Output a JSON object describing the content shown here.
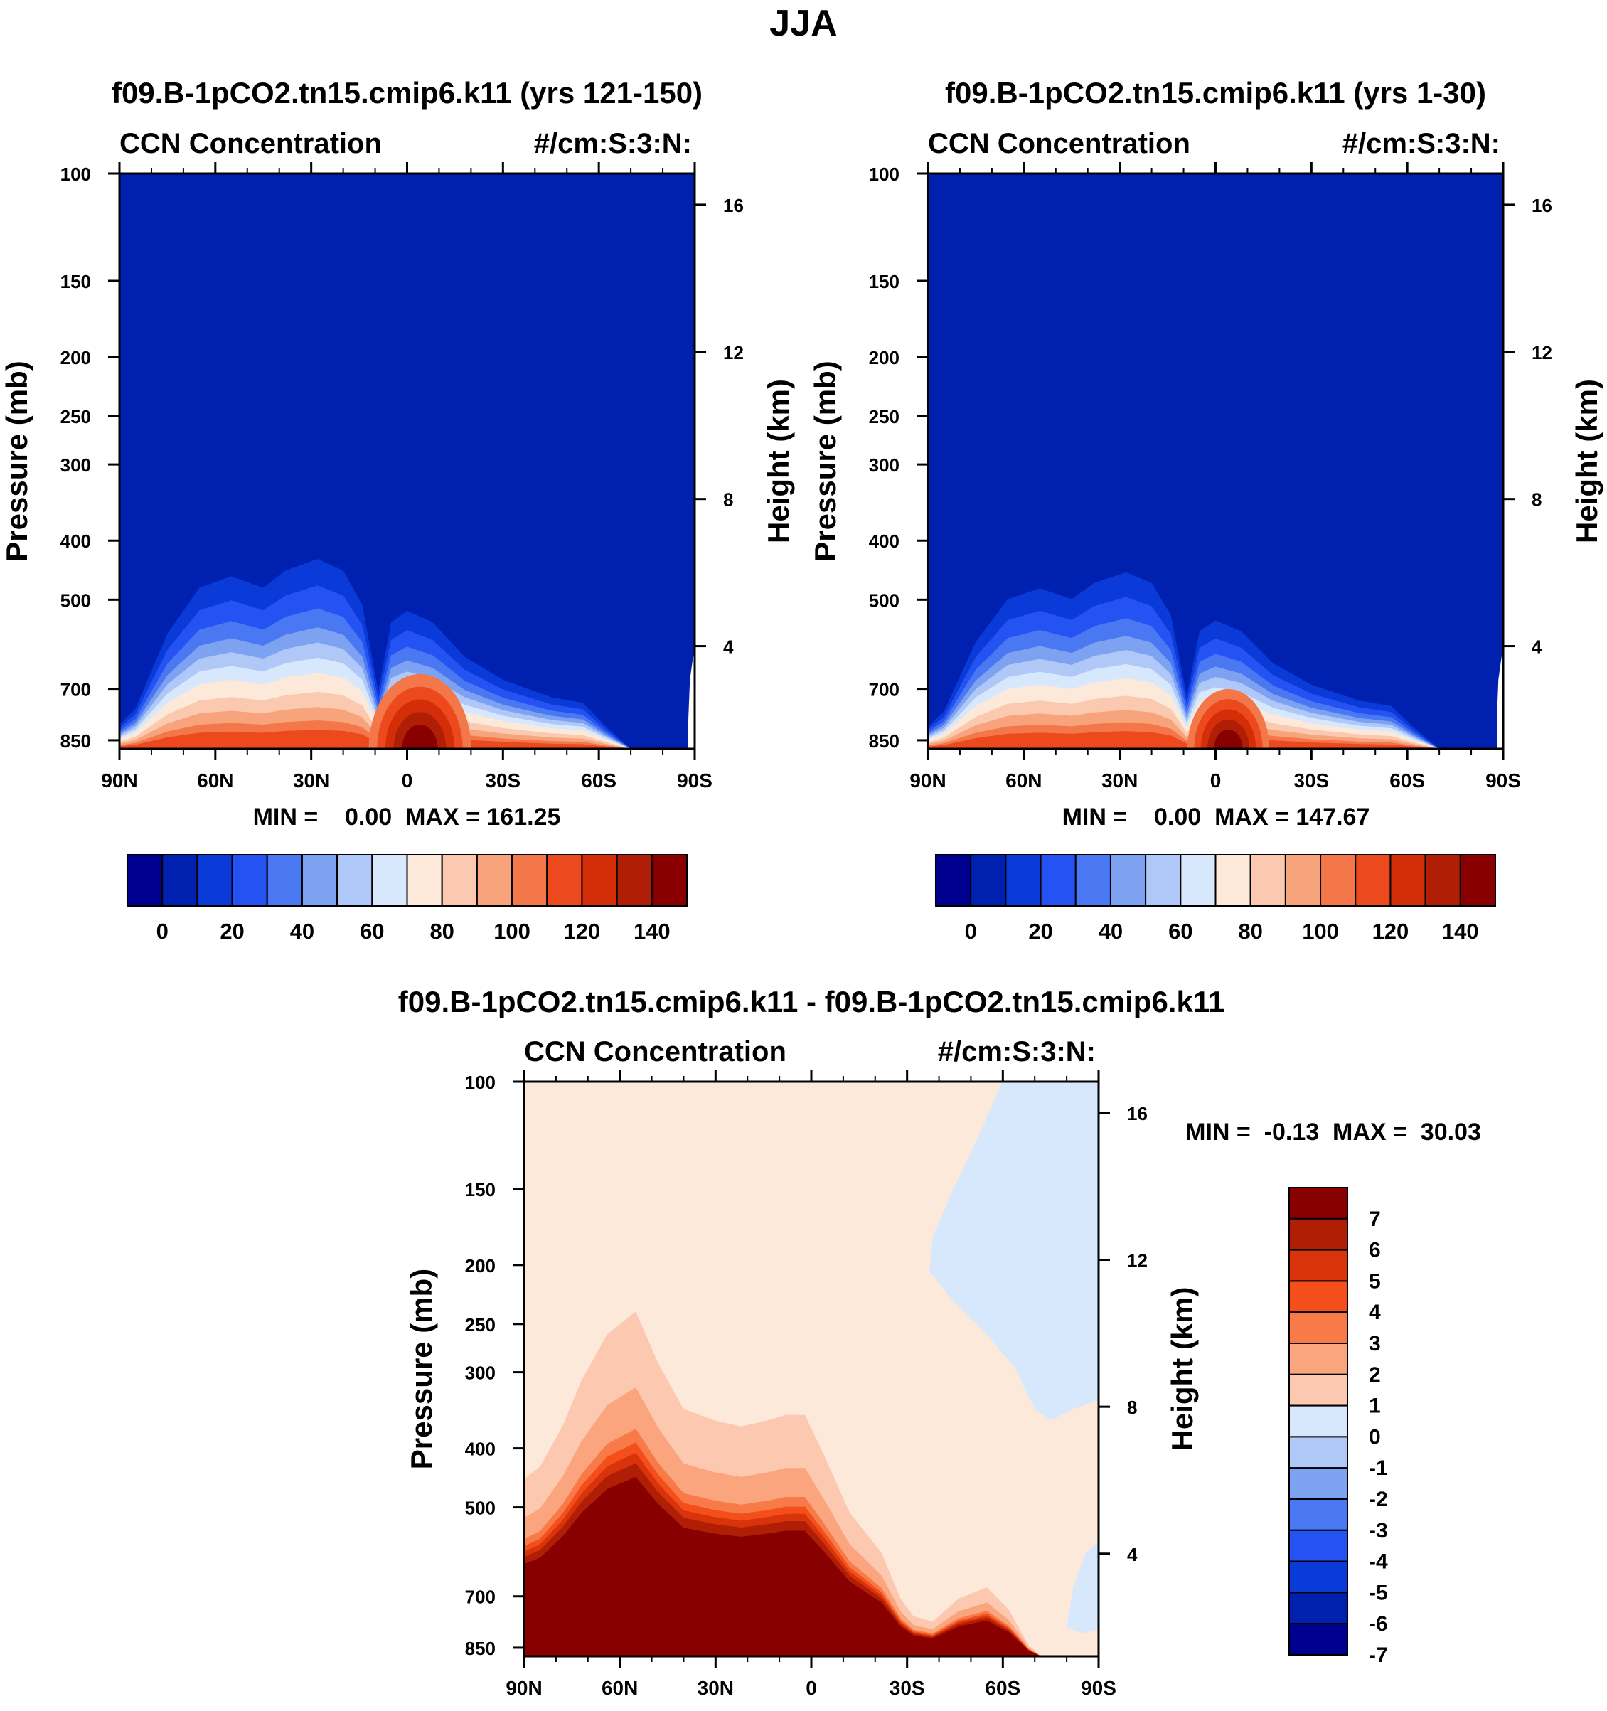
{
  "page_title": "JJA",
  "chart_data": [
    {
      "type": "contour",
      "title": "f09.B-1pCO2.tn15.cmip6.k11 (yrs 121-150)",
      "left_label": "CCN Concentration",
      "right_label": "#/cm:S:3:N:",
      "ylabel": "Pressure (mb)",
      "y2label": "Height (km)",
      "x_ticks": [
        "90N",
        "60N",
        "30N",
        "0",
        "30S",
        "60S",
        "90S"
      ],
      "y_ticks": [
        "100",
        "150",
        "200",
        "250",
        "300",
        "400",
        "500",
        "700",
        "850"
      ],
      "y2_ticks": [
        "16",
        "12",
        "8",
        "4"
      ],
      "min_max": "MIN =    0.00  MAX = 161.25",
      "min": 0.0,
      "max": 161.25,
      "colorbar_labels": [
        "0",
        "20",
        "40",
        "60",
        "80",
        "100",
        "120",
        "140"
      ]
    },
    {
      "type": "contour",
      "title": "f09.B-1pCO2.tn15.cmip6.k11 (yrs 1-30)",
      "left_label": "CCN Concentration",
      "right_label": "#/cm:S:3:N:",
      "ylabel": "Pressure (mb)",
      "y2label": "Height (km)",
      "x_ticks": [
        "90N",
        "60N",
        "30N",
        "0",
        "30S",
        "60S",
        "90S"
      ],
      "y_ticks": [
        "100",
        "150",
        "200",
        "250",
        "300",
        "400",
        "500",
        "700",
        "850"
      ],
      "y2_ticks": [
        "16",
        "12",
        "8",
        "4"
      ],
      "min_max": "MIN =    0.00  MAX = 147.67",
      "min": 0.0,
      "max": 147.67,
      "colorbar_labels": [
        "0",
        "20",
        "40",
        "60",
        "80",
        "100",
        "120",
        "140"
      ]
    },
    {
      "type": "contour",
      "title": "f09.B-1pCO2.tn15.cmip6.k11 - f09.B-1pCO2.tn15.cmip6.k11",
      "left_label": "CCN Concentration",
      "right_label": "#/cm:S:3:N:",
      "ylabel": "Pressure (mb)",
      "y2label": "Height (km)",
      "x_ticks": [
        "90N",
        "60N",
        "30N",
        "0",
        "30S",
        "60S",
        "90S"
      ],
      "y_ticks": [
        "100",
        "150",
        "200",
        "250",
        "300",
        "400",
        "500",
        "700",
        "850"
      ],
      "y2_ticks": [
        "16",
        "12",
        "8",
        "4"
      ],
      "min_max": "MIN =  -0.13  MAX =  30.03",
      "min": -0.13,
      "max": 30.03,
      "colorbar_labels": [
        "7",
        "6",
        "5",
        "4",
        "3",
        "2",
        "1",
        "0",
        "-1",
        "-2",
        "-3",
        "-4",
        "-5",
        "-6",
        "-7"
      ]
    }
  ],
  "colors": {
    "seq": [
      "#00008e",
      "#0020b0",
      "#0a3ad8",
      "#2552f2",
      "#4a78f2",
      "#7da2f2",
      "#b0c8f8",
      "#d8e8fc",
      "#fde9da",
      "#fbc8b0",
      "#f7a37c",
      "#f4774a",
      "#ec4a1e",
      "#d42e08",
      "#b01e05",
      "#880000"
    ],
    "div": [
      "#880000",
      "#b01e05",
      "#d8330a",
      "#f44e1a",
      "#f77a48",
      "#fba57e",
      "#fdc8b0",
      "#fde9da",
      "#d8e8fc",
      "#b0c8f8",
      "#7da2f2",
      "#4a78f2",
      "#2552f2",
      "#0a3ad8",
      "#0020b0",
      "#00008e"
    ]
  }
}
